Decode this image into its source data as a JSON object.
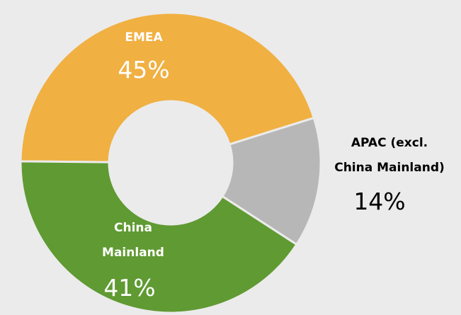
{
  "chart_data": {
    "type": "donut",
    "categories": [
      "EMEA",
      "APAC (excl.\nChina Mainland)",
      "China\nMainland"
    ],
    "values": [
      45,
      14,
      41
    ],
    "value_labels": [
      "45%",
      "14%",
      "41%"
    ],
    "colors": [
      "#f0b042",
      "#b7b7b7",
      "#5f9a32"
    ]
  }
}
